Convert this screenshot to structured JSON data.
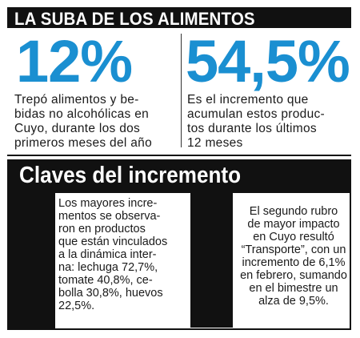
{
  "banner": {
    "title": "LA SUBA DE LOS ALIMENTOS"
  },
  "stats": [
    {
      "value": "12%",
      "text": "Trepó alimentos y be-\nbidas no alcohólicas en\nCuyo, durante los dos\nprimeros meses del año"
    },
    {
      "value": "54,5%",
      "text": "Es el incremento que\nacumulan estos produc-\ntos durante los últimos\n12 meses"
    }
  ],
  "claves": {
    "title": "Claves del incremento",
    "items": [
      "Los mayores incre-\nmentos se observa-\nron en productos\nque están vinculados\na la dinámica inter-\nna: lechuga 72,7%,\ntomate 40,8%, ce-\nbolla 30,8%, huevos\n22,5%.",
      "El segundo rubro\nde mayor impacto\nen Cuyo resultó\n“Transporte”, con un\nincremento de 6,1%\nen febrero, sumando\nen el bimestre un\nalza de 9,5%."
    ]
  },
  "colors": {
    "accent": "#1a8fd1",
    "bar": "#111111"
  }
}
